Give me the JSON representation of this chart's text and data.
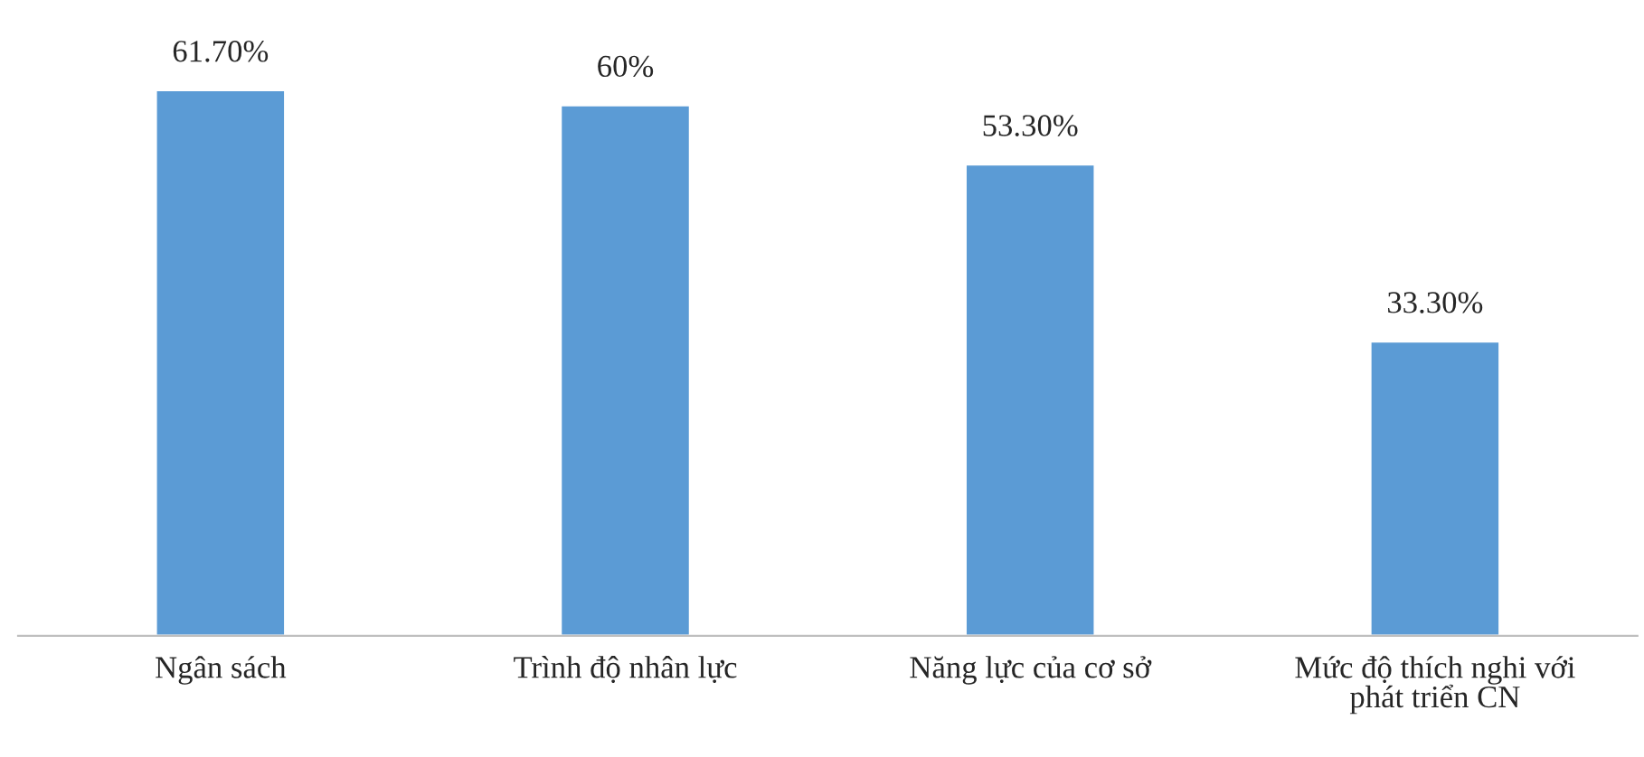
{
  "chart_data": {
    "type": "bar",
    "categories": [
      "Ngân sách",
      "Trình độ nhân lực",
      "Năng lực của cơ sở",
      "Mức độ thích nghi với\nphát triển CN"
    ],
    "values": [
      61.7,
      60,
      53.3,
      33.3
    ],
    "value_labels": [
      "61.70%",
      "60%",
      "53.30%",
      "33.30%"
    ],
    "color": "#5b9bd5"
  }
}
